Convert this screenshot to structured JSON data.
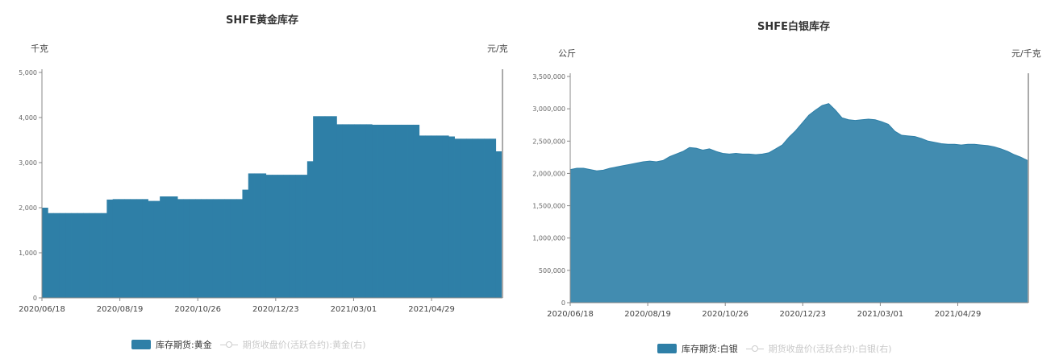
{
  "chart_data": [
    {
      "type": "bar",
      "title": "SHFE黄金库存",
      "ylabel_left": "千克",
      "ylabel_right": "元/克",
      "ylim": [
        0,
        5000
      ],
      "yticks": [
        "0",
        "1,000",
        "2,000",
        "3,000",
        "4,000",
        "5,000"
      ],
      "xticks": [
        "2020/06/18",
        "2020/08/19",
        "2020/10/26",
        "2020/12/23",
        "2021/03/01",
        "2021/04/29"
      ],
      "series": [
        {
          "name": "库存期货:黄金",
          "color": "#2e7fa7",
          "values": [
            2000,
            1880,
            1880,
            1880,
            1880,
            1880,
            1880,
            1880,
            1880,
            1880,
            1880,
            2180,
            2190,
            2190,
            2190,
            2190,
            2190,
            2190,
            2150,
            2150,
            2250,
            2250,
            2250,
            2190,
            2190,
            2190,
            2190,
            2190,
            2190,
            2190,
            2190,
            2190,
            2190,
            2190,
            2400,
            2760,
            2760,
            2760,
            2730,
            2730,
            2730,
            2730,
            2730,
            2730,
            2730,
            3030,
            4030,
            4030,
            4030,
            4030,
            3850,
            3850,
            3850,
            3850,
            3850,
            3850,
            3840,
            3840,
            3840,
            3840,
            3840,
            3840,
            3840,
            3840,
            3600,
            3600,
            3600,
            3600,
            3600,
            3580,
            3530,
            3530,
            3530,
            3530,
            3530,
            3530,
            3530,
            3250
          ]
        },
        {
          "name": "期货收盘价(活跃合约):黄金(右)",
          "values": []
        }
      ],
      "legend_position": "bottom"
    },
    {
      "type": "area",
      "title": "SHFE白银库存",
      "ylabel_left": "公斤",
      "ylabel_right": "元/千克",
      "ylim": [
        0,
        3500000
      ],
      "yticks": [
        "0",
        "500,000",
        "1,000,000",
        "1,500,000",
        "2,000,000",
        "2,500,000",
        "3,000,000",
        "3,500,000"
      ],
      "xticks": [
        "2020/06/18",
        "2020/08/19",
        "2020/10/26",
        "2020/12/23",
        "2021/03/01",
        "2021/04/29"
      ],
      "series": [
        {
          "name": "库存期货:白银",
          "color": "#2e7fa7",
          "values": [
            2060000,
            2080000,
            2080000,
            2060000,
            2040000,
            2050000,
            2080000,
            2100000,
            2120000,
            2140000,
            2160000,
            2180000,
            2190000,
            2180000,
            2200000,
            2260000,
            2300000,
            2340000,
            2400000,
            2390000,
            2360000,
            2380000,
            2340000,
            2310000,
            2300000,
            2310000,
            2300000,
            2300000,
            2290000,
            2300000,
            2320000,
            2380000,
            2440000,
            2560000,
            2660000,
            2780000,
            2900000,
            2980000,
            3050000,
            3080000,
            2980000,
            2860000,
            2830000,
            2820000,
            2830000,
            2840000,
            2830000,
            2800000,
            2760000,
            2650000,
            2590000,
            2580000,
            2570000,
            2540000,
            2500000,
            2480000,
            2460000,
            2450000,
            2450000,
            2440000,
            2450000,
            2450000,
            2440000,
            2430000,
            2410000,
            2380000,
            2340000,
            2290000,
            2250000,
            2200000
          ]
        },
        {
          "name": "期货收盘价(活跃合约):白银(右)",
          "values": []
        }
      ],
      "legend_position": "bottom"
    }
  ]
}
